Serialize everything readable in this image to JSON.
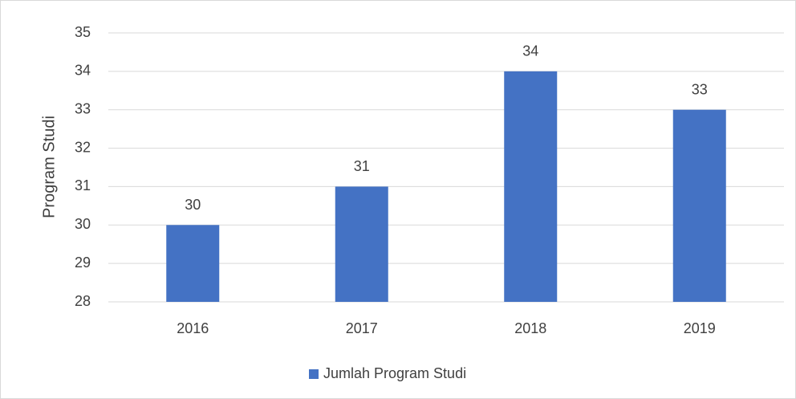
{
  "chart_data": {
    "type": "bar",
    "y_label": "Program Studi",
    "categories": [
      "2016",
      "2017",
      "2018",
      "2019"
    ],
    "series": [
      {
        "name": "Jumlah Program Studi",
        "color": "#4472c4",
        "values": [
          30,
          31,
          34,
          33
        ]
      }
    ],
    "ylim": [
      28,
      35
    ],
    "yticks": [
      28,
      29,
      30,
      31,
      32,
      33,
      34,
      35
    ],
    "grid": true,
    "legend": "bottom"
  }
}
